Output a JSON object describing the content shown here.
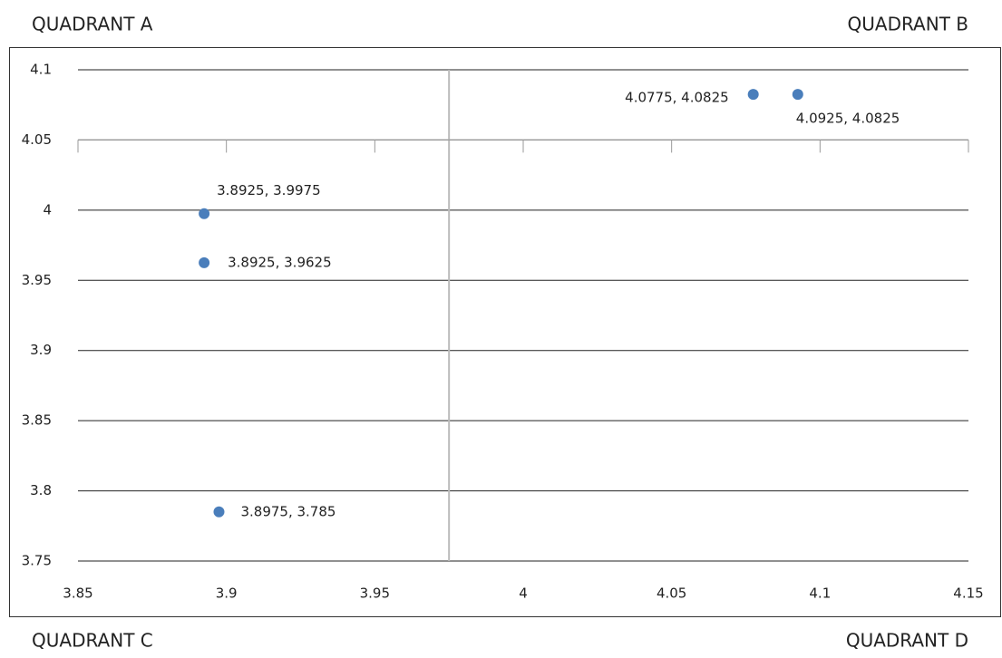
{
  "chart_data": {
    "type": "scatter",
    "quadrant_labels": [
      "QUADRANT A",
      "QUADRANT B",
      "QUADRANT C",
      "QUADRANT D"
    ],
    "series": [
      {
        "color": "#4a7ebb",
        "x": [
          3.8925,
          3.8925,
          3.8975,
          4.0775,
          4.0925
        ],
        "y": [
          3.9975,
          3.9625,
          3.785,
          4.0825,
          4.0825
        ],
        "value_labels": [
          "3.8925, 3.9975",
          "3.8925, 3.9625",
          "3.8975, 3.785",
          "4.0775, 4.0825",
          "4.0925, 4.0825"
        ]
      }
    ],
    "xlim": [
      3.85,
      4.15
    ],
    "xticks": [
      3.85,
      3.9,
      3.95,
      4,
      4.05,
      4.1,
      4.15
    ],
    "ylim": [
      3.75,
      4.1
    ],
    "yticks": [
      3.75,
      3.8,
      3.85,
      3.9,
      3.95,
      4,
      4.05,
      4.1
    ],
    "x_axis_crosses_at": 4.05,
    "y_axis_crosses_at": 3.975,
    "grid": true
  }
}
